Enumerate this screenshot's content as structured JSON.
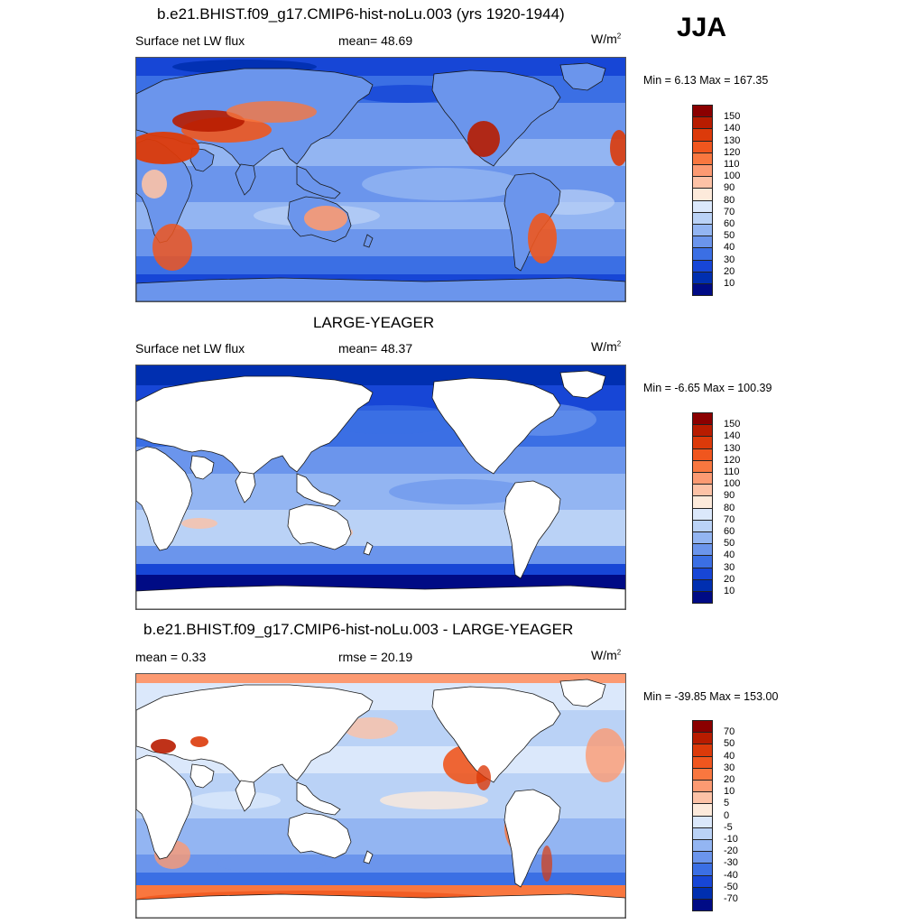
{
  "season": "JJA",
  "units": "W/m",
  "units_sup": "2",
  "panels": [
    {
      "title": "b.e21.BHIST.f09_g17.CMIP6-hist-noLu.003 (yrs 1920-1944)",
      "left_label": "Surface net LW flux",
      "center_label": "mean=  48.69",
      "minmax": "Min =   6.13 Max = 167.35",
      "variant": "full"
    },
    {
      "title": "LARGE-YEAGER",
      "left_label": "Surface net LW flux",
      "center_label": "mean=  48.37",
      "minmax": "Min =  -6.65 Max = 100.39",
      "variant": "ocean"
    },
    {
      "title": "b.e21.BHIST.f09_g17.CMIP6-hist-noLu.003 - LARGE-YEAGER",
      "left_label": "mean =   0.33",
      "center_label": "rmse =  20.19",
      "minmax": "Min = -39.85 Max = 153.00",
      "variant": "diff"
    }
  ],
  "colorbars": {
    "abs": {
      "labels": [
        "150",
        "140",
        "130",
        "120",
        "110",
        "100",
        "90",
        "80",
        "70",
        "60",
        "50",
        "40",
        "30",
        "20",
        "10"
      ],
      "colors": [
        "#8b0000",
        "#b81c00",
        "#dc3a0a",
        "#f0561e",
        "#f9773f",
        "#fc9a72",
        "#fdc2a6",
        "#fdeadb",
        "#dbe8fb",
        "#bad2f6",
        "#93b5f2",
        "#6b95ec",
        "#3b6fe4",
        "#1746d6",
        "#002fb0",
        "#000b85"
      ]
    },
    "diff": {
      "labels": [
        "70",
        "50",
        "40",
        "30",
        "20",
        "10",
        "5",
        "0",
        "-5",
        "-10",
        "-20",
        "-30",
        "-40",
        "-50",
        "-70"
      ],
      "colors": [
        "#8b0000",
        "#b81c00",
        "#dc3a0a",
        "#f0561e",
        "#f9773f",
        "#fc9a72",
        "#fdc2a6",
        "#fdeadb",
        "#dbe8fb",
        "#bad2f6",
        "#93b5f2",
        "#6b95ec",
        "#3b6fe4",
        "#1746d6",
        "#002fb0",
        "#000b85"
      ]
    }
  }
}
